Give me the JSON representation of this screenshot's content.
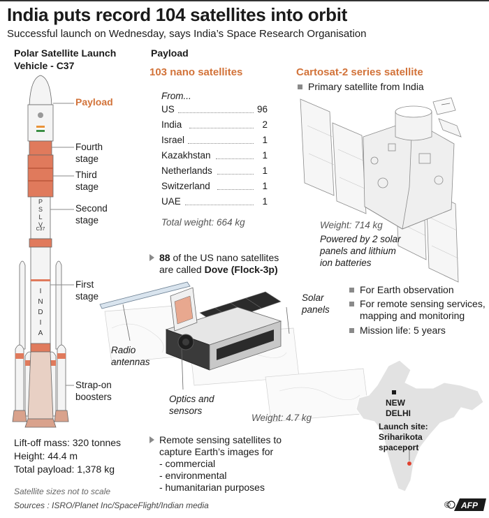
{
  "title": "India puts record 104 satellites into orbit",
  "subtitle": "Successful launch on Wednesday, says India’s Space Research Organisation",
  "rocket": {
    "heading_line1": "Polar Satellite Launch",
    "heading_line2": "Vehicle - C37",
    "payload_label": "Payload",
    "fourth_stage_1": "Fourth",
    "fourth_stage_2": "stage",
    "third_stage_1": "Third",
    "third_stage_2": "stage",
    "second_stage_1": "Second",
    "second_stage_2": "stage",
    "first_stage_1": "First",
    "first_stage_2": "stage",
    "strapon_1": "Strap-on",
    "strapon_2": "boosters",
    "body_text_pslv": "PSLV",
    "body_text_c37": "C37",
    "body_text_india": "INDIA",
    "liftoff_mass": "Lift-off mass: 320 tonnes",
    "height": "Height: 44.4 m",
    "total_payload": "Total payload: 1,378 kg"
  },
  "payload": {
    "heading": "Payload",
    "nano": {
      "heading": "103 nano satellites",
      "from_label": "From...",
      "countries": [
        {
          "name": "US",
          "count": "96"
        },
        {
          "name": "India",
          "count": "2"
        },
        {
          "name": "Israel",
          "count": "1"
        },
        {
          "name": "Kazakhstan",
          "count": "1"
        },
        {
          "name": "Netherlands",
          "count": "1"
        },
        {
          "name": "Switzerland",
          "count": "1"
        },
        {
          "name": "UAE",
          "count": "1"
        }
      ],
      "total_weight": "Total weight: 664 kg"
    },
    "cartosat": {
      "heading": "Cartosat-2 series satellite",
      "primary": "Primary satellite from India",
      "weight": "Weight: 714 kg",
      "power_1": "Powered by 2 solar",
      "power_2": "panels and lithium",
      "power_3": "ion batteries",
      "bullets": [
        "For Earth observation",
        "For remote sensing services,",
        "mapping and monitoring",
        "Mission life: 5 years"
      ]
    },
    "dove": {
      "count": "88",
      "line1_rest": " of the US nano satellites",
      "line2_pre": "are called ",
      "line2_bold": "Dove (Flock-3p)",
      "solar_1": "Solar",
      "solar_2": "panels",
      "radio_1": "Radio",
      "radio_2": "antennas",
      "optics_1": "Optics and",
      "optics_2": "sensors",
      "weight": "Weight: 4.7 kg"
    },
    "remote": {
      "line1": "Remote sensing satellites to",
      "line2": "capture Earth’s images for",
      "items": [
        "- commercial",
        "- environmental",
        "- humanitarian purposes"
      ]
    }
  },
  "map": {
    "capital_1": "NEW",
    "capital_2": "DELHI",
    "site_1": "Launch site:",
    "site_2": "Sriharikota",
    "site_3": "spaceport"
  },
  "footer": {
    "scale_note": "Satellite sizes not to scale",
    "sources": "Sources : ISRO/Planet Inc/SpaceFlight/Indian media",
    "credit": "AFP"
  },
  "colors": {
    "accent_orange": "#d2733a",
    "stage_red": "#e07a5c",
    "map_gray": "#e2e2e2",
    "bullet_gray": "#8a8a8a"
  }
}
